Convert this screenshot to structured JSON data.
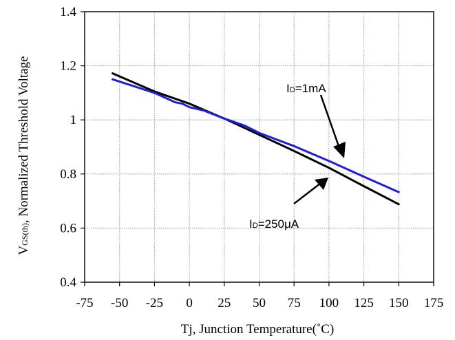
{
  "chart_data": {
    "type": "line",
    "title": "",
    "xlabel": "Tj, Junction Temperature(˚C)",
    "ylabel_parts": {
      "main": "V",
      "sub": "GS(th)",
      "rest": ", Normalized Threshold Voltage"
    },
    "xlim": [
      -75,
      175
    ],
    "ylim": [
      0.4,
      1.4
    ],
    "x_ticks": [
      -75,
      -50,
      -25,
      0,
      25,
      50,
      75,
      100,
      125,
      150,
      175
    ],
    "y_ticks": [
      0.4,
      0.6,
      0.8,
      1,
      1.2,
      1.4
    ],
    "x_tick_labels": [
      "-75",
      "-50",
      "-25",
      "0",
      "25",
      "50",
      "75",
      "100",
      "125",
      "150",
      "175"
    ],
    "y_tick_labels": [
      "0.4",
      "0.6",
      "0.8",
      "1",
      "1.2",
      "1.4"
    ],
    "grid": true,
    "series": [
      {
        "name": "ID=1mA",
        "color": "#1f1fd6",
        "points": [
          [
            -55,
            1.15
          ],
          [
            -40,
            1.125
          ],
          [
            -25,
            1.1
          ],
          [
            -10,
            1.065
          ],
          [
            -5,
            1.06
          ],
          [
            0,
            1.047
          ],
          [
            10,
            1.035
          ],
          [
            25,
            1.005
          ],
          [
            40,
            0.978
          ],
          [
            50,
            0.952
          ],
          [
            75,
            0.903
          ],
          [
            100,
            0.848
          ],
          [
            125,
            0.79
          ],
          [
            150,
            0.733
          ]
        ]
      },
      {
        "name": "ID=250μA",
        "color": "#000000",
        "points": [
          [
            -55,
            1.172
          ],
          [
            -25,
            1.105
          ],
          [
            0,
            1.06
          ],
          [
            25,
            1.005
          ],
          [
            50,
            0.945
          ],
          [
            75,
            0.885
          ],
          [
            100,
            0.823
          ],
          [
            125,
            0.755
          ],
          [
            150,
            0.688
          ]
        ]
      }
    ],
    "annotations": [
      {
        "main": "I",
        "sub": "D",
        "rest": "=1mA"
      },
      {
        "main": "I",
        "sub": "D",
        "rest": "=250μA"
      }
    ]
  }
}
